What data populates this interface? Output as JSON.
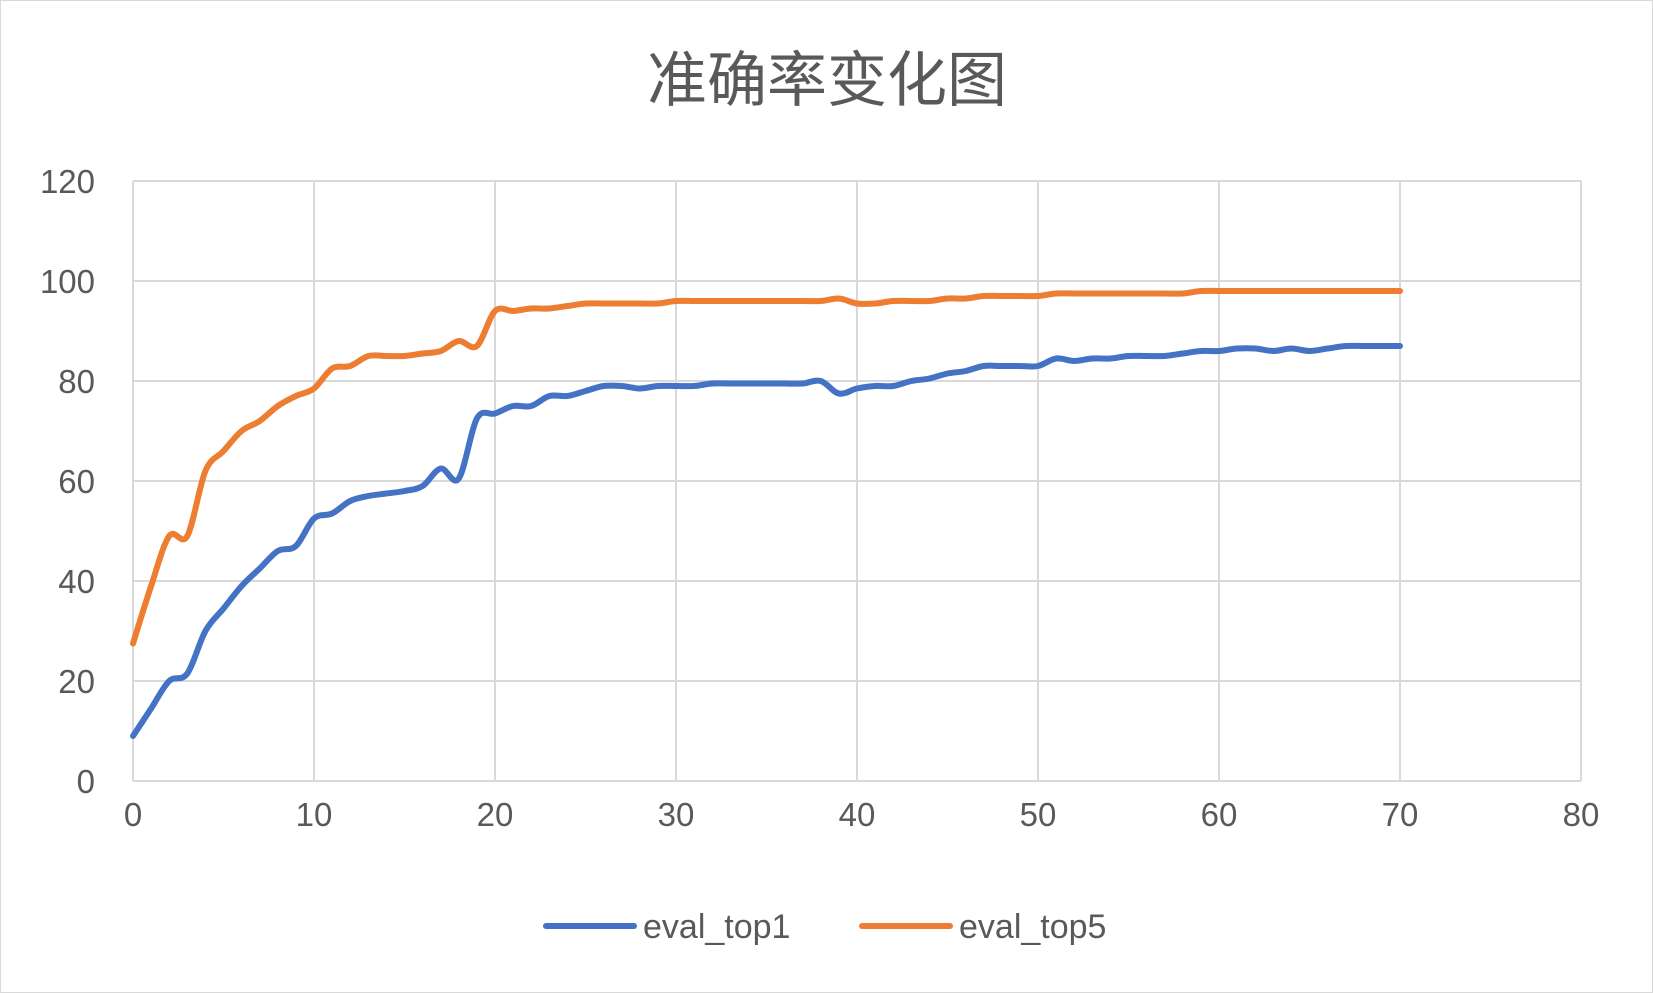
{
  "chart_data": {
    "type": "line",
    "title": "准确率变化图",
    "xlabel": "",
    "ylabel": "",
    "xlim": [
      0,
      80
    ],
    "ylim": [
      0,
      120
    ],
    "xticks": [
      "0",
      "10",
      "20",
      "30",
      "40",
      "50",
      "60",
      "70",
      "80"
    ],
    "yticks": [
      "0",
      "20",
      "40",
      "60",
      "80",
      "100",
      "120"
    ],
    "grid": true,
    "legend": "bottom",
    "x": [
      0,
      1,
      2,
      3,
      4,
      5,
      6,
      7,
      8,
      9,
      10,
      11,
      12,
      13,
      14,
      15,
      16,
      17,
      18,
      19,
      20,
      21,
      22,
      23,
      24,
      25,
      26,
      27,
      28,
      29,
      30,
      31,
      32,
      33,
      34,
      35,
      36,
      37,
      38,
      39,
      40,
      41,
      42,
      43,
      44,
      45,
      46,
      47,
      48,
      49,
      50,
      51,
      52,
      53,
      54,
      55,
      56,
      57,
      58,
      59,
      60,
      61,
      62,
      63,
      64,
      65,
      66,
      67,
      68,
      69,
      70
    ],
    "series": [
      {
        "name": "eval_top1",
        "color": "#4472c4",
        "values": [
          9,
          14.5,
          20,
          21.5,
          30,
          34.5,
          39,
          42.5,
          46,
          47,
          52.5,
          53.5,
          56,
          57,
          57.5,
          58,
          59,
          62.5,
          60.5,
          72.5,
          73.5,
          75,
          75,
          77,
          77,
          78,
          79,
          79,
          78.5,
          79,
          79,
          79,
          79.5,
          79.5,
          79.5,
          79.5,
          79.5,
          79.5,
          80,
          77.5,
          78.5,
          79,
          79,
          80,
          80.5,
          81.5,
          82,
          83,
          83,
          83,
          83,
          84.5,
          84,
          84.5,
          84.5,
          85,
          85,
          85,
          85.5,
          86,
          86,
          86.5,
          86.5,
          86,
          86.5,
          86,
          86.5,
          87,
          87,
          87,
          87
        ]
      },
      {
        "name": "eval_top5",
        "color": "#ed7d31",
        "values": [
          27.5,
          39,
          49,
          49,
          62,
          66,
          70,
          72,
          75,
          77,
          78.5,
          82.5,
          83,
          85,
          85,
          85,
          85.5,
          86,
          88,
          87,
          94,
          94,
          94.5,
          94.5,
          95,
          95.5,
          95.5,
          95.5,
          95.5,
          95.5,
          96,
          96,
          96,
          96,
          96,
          96,
          96,
          96,
          96,
          96.5,
          95.5,
          95.5,
          96,
          96,
          96,
          96.5,
          96.5,
          97,
          97,
          97,
          97,
          97.5,
          97.5,
          97.5,
          97.5,
          97.5,
          97.5,
          97.5,
          97.5,
          98,
          98,
          98,
          98,
          98,
          98,
          98,
          98,
          98,
          98,
          98,
          98
        ]
      }
    ]
  }
}
